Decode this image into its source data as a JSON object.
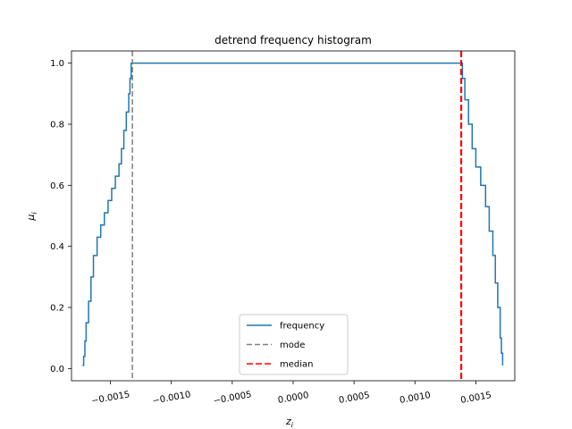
{
  "chart_data": {
    "type": "line",
    "title": "detrend frequency histogram",
    "xlabel": "z",
    "xlabel_sub": "i",
    "ylabel": "μ",
    "ylabel_sub": "i",
    "xlim": [
      -0.00182,
      0.00182
    ],
    "ylim": [
      -0.04,
      1.04
    ],
    "xticks": [
      -0.0015,
      -0.001,
      -0.0005,
      0.0,
      0.0005,
      0.001,
      0.0015
    ],
    "xtick_labels": [
      "−0.0015",
      "−0.0010",
      "−0.0005",
      "0.0000",
      "0.0005",
      "0.0010",
      "0.0015"
    ],
    "yticks": [
      0.0,
      0.2,
      0.4,
      0.6,
      0.8,
      1.0
    ],
    "ytick_labels": [
      "0.0",
      "0.2",
      "0.4",
      "0.6",
      "0.8",
      "1.0"
    ],
    "series": [
      {
        "name": "frequency",
        "color": "#1f77b4",
        "style": "step",
        "points": [
          [
            -0.00173,
            0.01
          ],
          [
            -0.00172,
            0.04
          ],
          [
            -0.00171,
            0.09
          ],
          [
            -0.0017,
            0.15
          ],
          [
            -0.00168,
            0.22
          ],
          [
            -0.00166,
            0.3
          ],
          [
            -0.00164,
            0.37
          ],
          [
            -0.00161,
            0.43
          ],
          [
            -0.00158,
            0.47
          ],
          [
            -0.00155,
            0.51
          ],
          [
            -0.00152,
            0.55
          ],
          [
            -0.00149,
            0.59
          ],
          [
            -0.00146,
            0.63
          ],
          [
            -0.00143,
            0.67
          ],
          [
            -0.00141,
            0.72
          ],
          [
            -0.00139,
            0.78
          ],
          [
            -0.00137,
            0.84
          ],
          [
            -0.00135,
            0.9
          ],
          [
            -0.00134,
            0.95
          ],
          [
            -0.00133,
            1.0
          ],
          [
            0.00138,
            1.0
          ],
          [
            0.00139,
            0.95
          ],
          [
            0.00141,
            0.88
          ],
          [
            0.00144,
            0.8
          ],
          [
            0.00147,
            0.72
          ],
          [
            0.0015,
            0.66
          ],
          [
            0.00154,
            0.6
          ],
          [
            0.00158,
            0.53
          ],
          [
            0.00161,
            0.45
          ],
          [
            0.00164,
            0.37
          ],
          [
            0.00166,
            0.28
          ],
          [
            0.00168,
            0.2
          ],
          [
            0.0017,
            0.1
          ],
          [
            0.00171,
            0.05
          ],
          [
            0.00172,
            0.01
          ]
        ]
      }
    ],
    "vlines": [
      {
        "name": "mode",
        "x": -0.00132,
        "color": "#808080",
        "dash": "6,3",
        "width": 1.5
      },
      {
        "name": "median",
        "x": 0.00138,
        "color": "#ff0000",
        "dash": "7,3",
        "width": 2.2
      }
    ],
    "legend": {
      "position": "lower-center",
      "entries": [
        {
          "label": "frequency",
          "color": "#1f77b4",
          "dash": ""
        },
        {
          "label": "mode",
          "color": "#808080",
          "dash": "6,3"
        },
        {
          "label": "median",
          "color": "#ff0000",
          "dash": "7,3"
        }
      ]
    }
  }
}
